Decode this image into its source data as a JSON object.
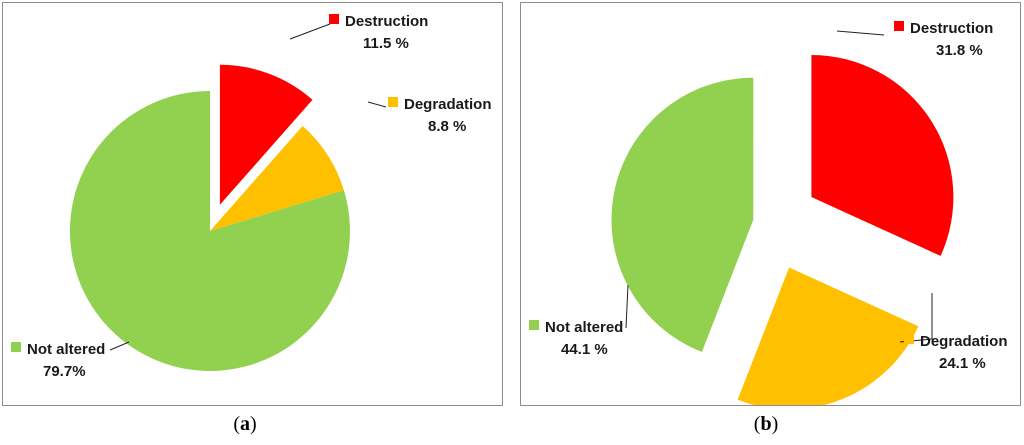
{
  "chart_data": [
    {
      "type": "pie",
      "panel_label": "a",
      "slices": [
        {
          "label": "Destruction",
          "value": 11.5,
          "value_text": "11.5 %",
          "color": "#ff0000"
        },
        {
          "label": "Degradation",
          "value": 8.8,
          "value_text": "8.8 %",
          "color": "#ffc000"
        },
        {
          "label": "Not altered",
          "value": 79.7,
          "value_text": "79.7%",
          "color": "#92d050"
        }
      ]
    },
    {
      "type": "pie",
      "panel_label": "b",
      "slices": [
        {
          "label": "Destruction",
          "value": 31.8,
          "value_text": "31.8 %",
          "color": "#ff0000"
        },
        {
          "label": "Degradation",
          "value": 24.1,
          "value_text": "24.1 %",
          "color": "#ffc000"
        },
        {
          "label": "Not altered",
          "value": 44.1,
          "value_text": "44.1 %",
          "color": "#92d050"
        }
      ]
    }
  ]
}
